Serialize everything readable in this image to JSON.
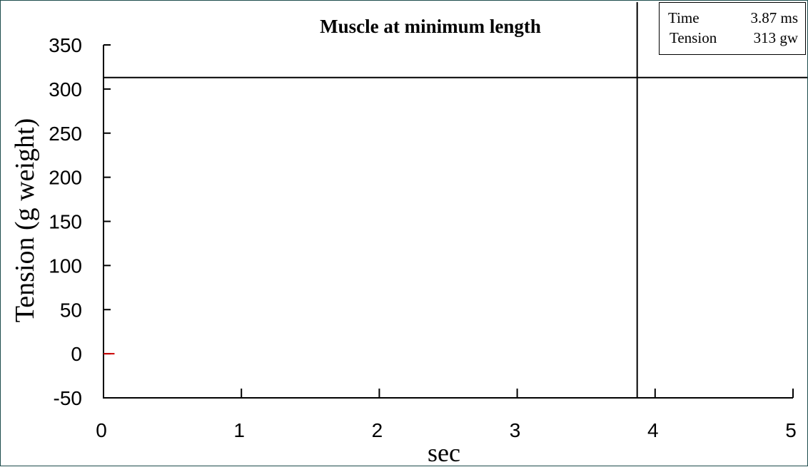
{
  "chart_data": {
    "type": "line",
    "title": "Muscle at minimum length",
    "xlabel": "sec",
    "ylabel": "Tension (g weight)",
    "xlim": [
      0,
      5
    ],
    "ylim": [
      -50,
      350
    ],
    "x_ticks": [
      0,
      1,
      2,
      3,
      4,
      5
    ],
    "y_ticks": [
      -50,
      0,
      50,
      100,
      150,
      200,
      250,
      300,
      350
    ],
    "x_tick_labels": [
      "0",
      "1",
      "2",
      "3",
      "4",
      "5"
    ],
    "y_tick_labels": [
      "-50",
      "0",
      "50",
      "100",
      "150",
      "200",
      "250",
      "300",
      "350"
    ],
    "grid": false,
    "series": [
      {
        "x": [
          0.0,
          0.08
        ],
        "y": [
          0,
          0
        ],
        "color": "#cc0000"
      }
    ],
    "cursor": {
      "x": 3.87,
      "y": 313,
      "color": "#000000"
    },
    "readout": {
      "time_label": "Time",
      "time_value": "3.87 ms",
      "tension_label": "Tension",
      "tension_value": "313 gw"
    },
    "colors": {
      "axis": "#000000",
      "frame": "#1f4d4d",
      "background": "#ffffff"
    }
  }
}
